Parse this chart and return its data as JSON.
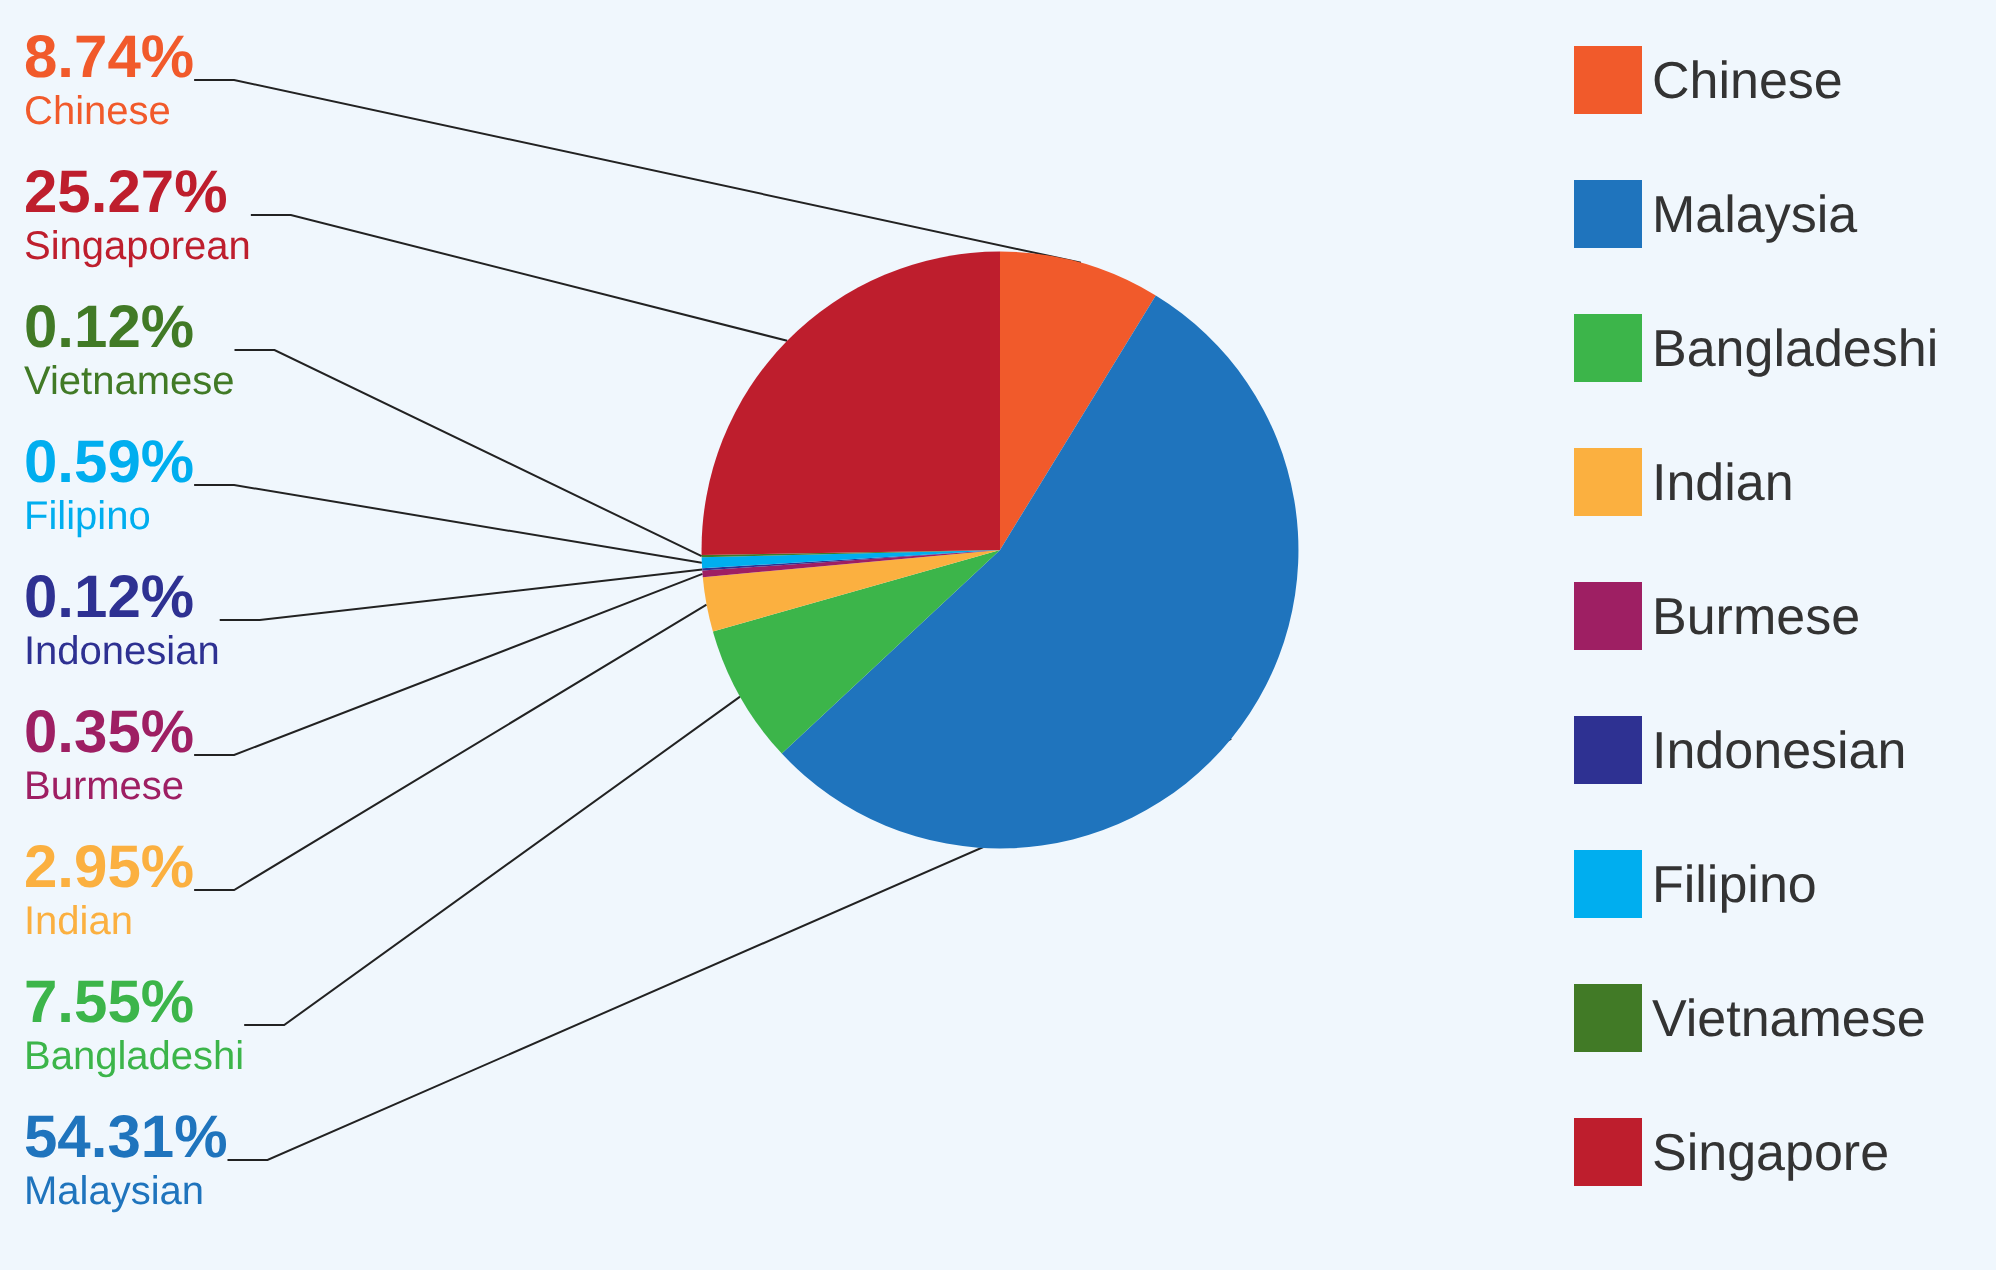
{
  "chart_data": {
    "type": "pie",
    "categories": [
      "Chinese",
      "Malaysia",
      "Bangladeshi",
      "Indian",
      "Burmese",
      "Indonesian",
      "Filipino",
      "Vietnamese",
      "Singapore"
    ],
    "values": [
      8.74,
      54.31,
      7.55,
      2.95,
      0.35,
      0.12,
      0.59,
      0.12,
      25.27
    ],
    "colors": [
      "#f15a2b",
      "#1f74bd",
      "#3cb54a",
      "#fbb040",
      "#9e1f63",
      "#2e3192",
      "#00aeef",
      "#417a26",
      "#be1e2d"
    ],
    "value_labels": [
      "8.74%\nChinese",
      "54.31%\nMalaysian",
      "7.55%\nBangladeshi",
      "2.95%\nIndian",
      "0.35%\nBurmese",
      "0.12%\nIndonesian",
      "0.59%\nFilipino",
      "0.12%\nVietnamese",
      "25.27%\nSingaporean"
    ],
    "legend": "right"
  }
}
